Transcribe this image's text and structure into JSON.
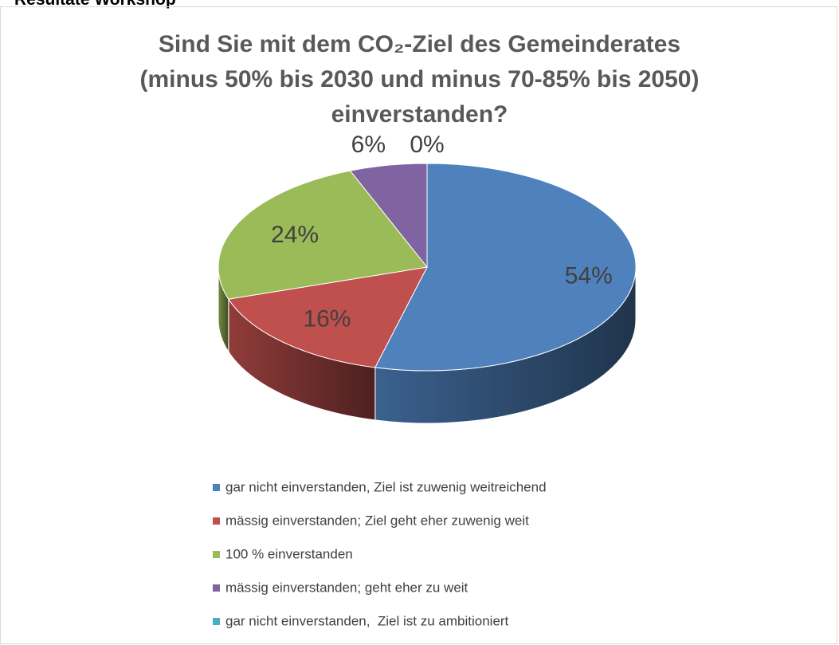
{
  "header": "Resultate Workshop",
  "chart_data": {
    "type": "pie",
    "title": "Sind Sie mit dem CO₂-Ziel des Gemeinderates\n(minus 50% bis 2030 und minus 70-85% bis 2050)\neinverstanden?",
    "categories": [
      "gar nicht einverstanden, Ziel ist zuwenig weitreichend",
      "mässig einverstanden; Ziel geht eher zuwenig weit",
      "100 % einverstanden",
      "mässig einverstanden; geht eher zu weit",
      "gar nicht einverstanden,  Ziel ist zu ambitioniert"
    ],
    "values": [
      54,
      16,
      24,
      6,
      0
    ],
    "value_labels": [
      "54%",
      "16%",
      "24%",
      "6%",
      "0%"
    ],
    "colors": [
      "#4f81bd",
      "#c0504d",
      "#9bbb59",
      "#8064a2",
      "#4bacc6"
    ],
    "legend": "bottom"
  }
}
